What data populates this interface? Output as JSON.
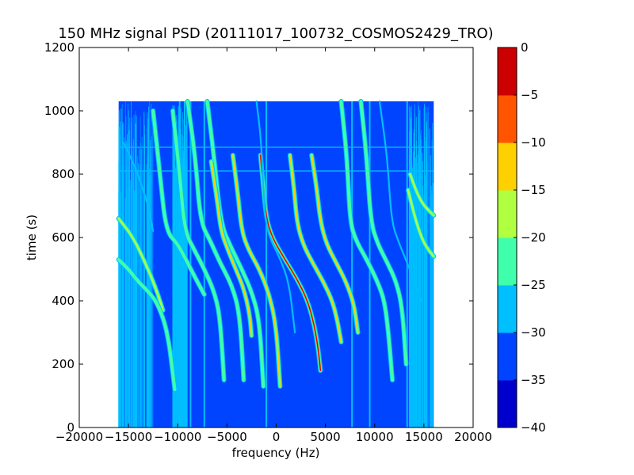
{
  "chart_data": {
    "type": "heatmap",
    "title": "150 MHz signal PSD (20111017_100732_COSMOS2429_TRO)",
    "xlabel": "frequency (Hz)",
    "ylabel": "time (s)",
    "xlim": [
      -20000,
      20000
    ],
    "ylim": [
      0,
      1200
    ],
    "x_ticks": [
      -20000,
      -15000,
      -10000,
      -5000,
      0,
      5000,
      10000,
      15000,
      20000
    ],
    "x_tick_labels": [
      "−20000",
      "−15000",
      "−10000",
      "−5000",
      "0",
      "5000",
      "10000",
      "15000",
      "20000"
    ],
    "y_ticks": [
      0,
      200,
      400,
      600,
      800,
      1000,
      1200
    ],
    "y_tick_labels": [
      "0",
      "200",
      "400",
      "600",
      "800",
      "1000",
      "1200"
    ],
    "data_extent": {
      "x": [
        -16000,
        16000
      ],
      "y": [
        0,
        1030
      ]
    },
    "background_level": -35,
    "grid": false,
    "colorbar": {
      "levels": [
        -40,
        -35,
        -30,
        -25,
        -20,
        -15,
        -10,
        -5,
        0
      ],
      "tick_labels": [
        "−40",
        "−35",
        "−30",
        "−25",
        "−20",
        "−15",
        "−10",
        "−5",
        "0"
      ],
      "colors": [
        "#0000cd",
        "#0044ff",
        "#00bfff",
        "#40ffaa",
        "#b0ff40",
        "#ffd000",
        "#ff5500",
        "#cc0000"
      ]
    },
    "traces": [
      {
        "x": [
          -16000,
          -14500,
          -13000,
          -12000,
          -11500
        ],
        "y": [
          660,
          600,
          500,
          420,
          370
        ],
        "level": -20
      },
      {
        "x": [
          -16000,
          -15000,
          -14000,
          -13000,
          -12000,
          -11000,
          -10300
        ],
        "y": [
          530,
          500,
          460,
          430,
          390,
          300,
          120
        ],
        "level": -25
      },
      {
        "x": [
          -15500,
          -14000,
          -13000,
          -12500
        ],
        "y": [
          900,
          800,
          700,
          620
        ],
        "level": -30
      },
      {
        "x": [
          -12500,
          -11800,
          -11200,
          -10000,
          -9000,
          -8000,
          -7300
        ],
        "y": [
          1000,
          800,
          620,
          580,
          520,
          460,
          420
        ],
        "level": -25
      },
      {
        "x": [
          -10500,
          -9800,
          -9300,
          -8300,
          -7300,
          -6300,
          -5700,
          -5300
        ],
        "y": [
          1000,
          800,
          620,
          560,
          500,
          430,
          350,
          150
        ],
        "level": -25
      },
      {
        "x": [
          -9000,
          -8200,
          -7700,
          -6700,
          -5700,
          -4500,
          -3700,
          -3300
        ],
        "y": [
          1030,
          850,
          650,
          590,
          520,
          450,
          360,
          150
        ],
        "level": -25
      },
      {
        "x": [
          -7000,
          -6300,
          -5600,
          -4600,
          -3500,
          -2500,
          -1700,
          -1300
        ],
        "y": [
          1030,
          850,
          640,
          570,
          500,
          430,
          340,
          130
        ],
        "level": -25
      },
      {
        "x": [
          -6600,
          -6000,
          -5600,
          -4900,
          -4100,
          -3300,
          -2700,
          -2500
        ],
        "y": [
          840,
          720,
          620,
          560,
          500,
          440,
          360,
          290
        ],
        "level": -15
      },
      {
        "x": [
          -4400,
          -3900,
          -3500,
          -2800,
          -1700,
          -700,
          0,
          400
        ],
        "y": [
          860,
          740,
          620,
          560,
          500,
          420,
          320,
          130
        ],
        "level": -15
      },
      {
        "x": [
          -1600,
          -1300,
          -1000,
          -400,
          700,
          2100,
          3200,
          3900,
          4300,
          4500
        ],
        "y": [
          860,
          760,
          660,
          600,
          540,
          470,
          400,
          320,
          240,
          180
        ],
        "level": -10
      },
      {
        "x": [
          1400,
          1800,
          2100,
          2700,
          3700,
          4800,
          5700,
          6200,
          6600
        ],
        "y": [
          860,
          760,
          650,
          580,
          520,
          460,
          400,
          340,
          270
        ],
        "level": -15
      },
      {
        "x": [
          3600,
          4100,
          4500,
          5100,
          6100,
          7100,
          7900,
          8300
        ],
        "y": [
          860,
          760,
          650,
          580,
          520,
          460,
          390,
          300
        ],
        "level": -15
      },
      {
        "x": [
          6600,
          7200,
          7500,
          8100,
          9200,
          10300,
          11000,
          11400,
          11800
        ],
        "y": [
          1030,
          850,
          650,
          590,
          530,
          460,
          400,
          300,
          150
        ],
        "level": -25
      },
      {
        "x": [
          8600,
          9200,
          9600,
          10300,
          11300,
          12200,
          12800,
          13200
        ],
        "y": [
          1030,
          850,
          650,
          580,
          520,
          460,
          380,
          200
        ],
        "level": -25
      },
      {
        "x": [
          10500,
          11300,
          11700,
          12500,
          13300,
          14200,
          14700
        ],
        "y": [
          1030,
          850,
          650,
          580,
          520,
          450,
          400
        ],
        "level": -30
      },
      {
        "x": [
          -2000,
          -1500,
          -1200,
          -700,
          300,
          1300,
          1900
        ],
        "y": [
          1030,
          900,
          680,
          600,
          540,
          460,
          300
        ],
        "level": -30
      },
      {
        "x": [
          13600,
          14300,
          15000,
          16000
        ],
        "y": [
          800,
          740,
          700,
          670
        ],
        "level": -20
      },
      {
        "x": [
          13400,
          14200,
          15000,
          16000
        ],
        "y": [
          750,
          650,
          580,
          540
        ],
        "level": -20
      }
    ],
    "vertical_lines": [
      {
        "x": -9800,
        "level": -30
      },
      {
        "x": -9300,
        "level": -30
      },
      {
        "x": -8700,
        "level": -30
      },
      {
        "x": -7300,
        "level": -30
      },
      {
        "x": -1000,
        "level": -30
      },
      {
        "x": 7700,
        "level": -30
      },
      {
        "x": 9500,
        "level": -30
      },
      {
        "x": 13300,
        "level": -30
      }
    ],
    "horizontal_lines": [
      {
        "y": 885,
        "level": -30
      },
      {
        "y": 810,
        "level": -30
      }
    ]
  }
}
